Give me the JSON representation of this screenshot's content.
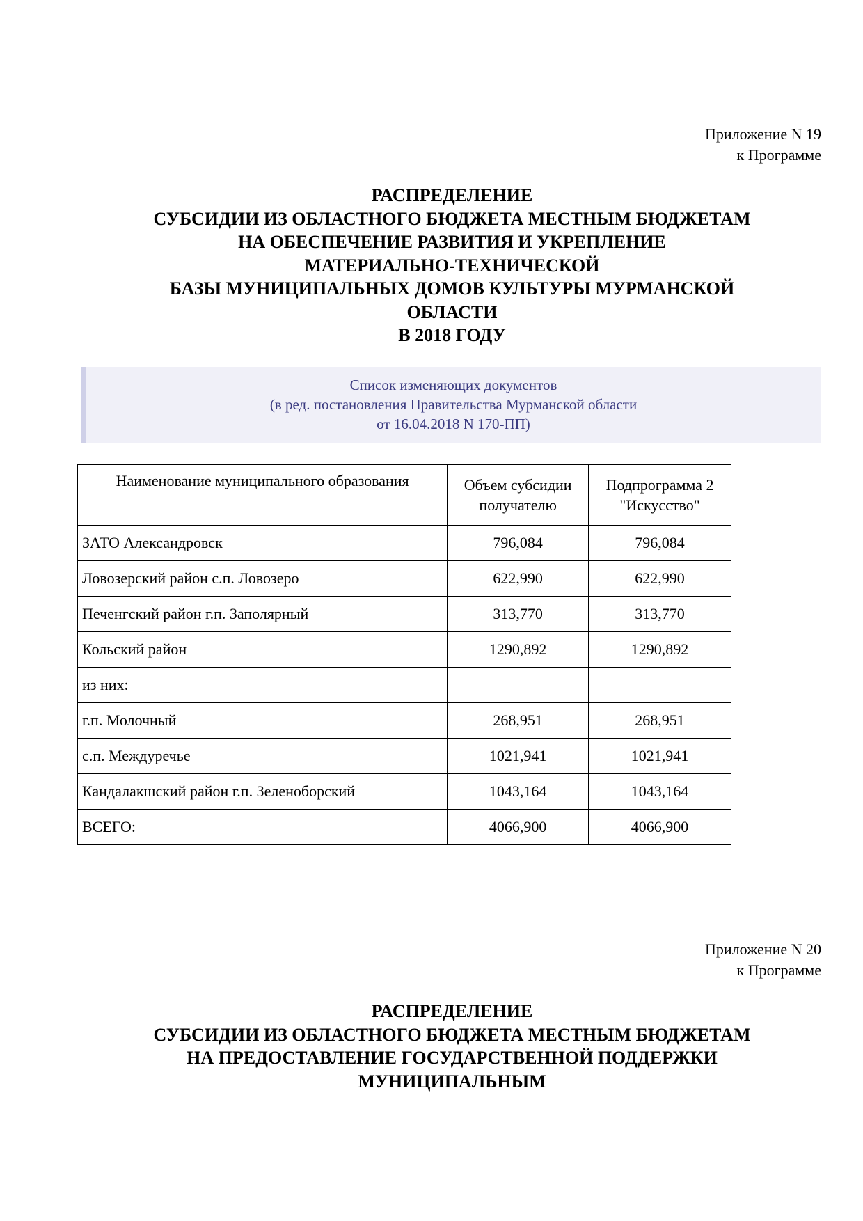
{
  "appendix19": {
    "line1": "Приложение N 19",
    "line2": "к Программе"
  },
  "title19": [
    "РАСПРЕДЕЛЕНИЕ",
    "СУБСИДИИ ИЗ ОБЛАСТНОГО БЮДЖЕТА МЕСТНЫМ БЮДЖЕТАМ",
    "НА ОБЕСПЕЧЕНИЕ РАЗВИТИЯ И УКРЕПЛЕНИЕ",
    "МАТЕРИАЛЬНО-ТЕХНИЧЕСКОЙ",
    "БАЗЫ МУНИЦИПАЛЬНЫХ ДОМОВ КУЛЬТУРЫ МУРМАНСКОЙ",
    "ОБЛАСТИ",
    "В 2018 ГОДУ"
  ],
  "changes": [
    "Список изменяющих документов",
    "(в ред. постановления Правительства Мурманской области",
    "от 16.04.2018 N 170-ПП)"
  ],
  "table": {
    "headers": [
      "Наименование муниципального образования",
      "Объем субсидии получателю",
      "Подпрограмма 2 \"Искусство\""
    ],
    "rows": [
      [
        "ЗАТО Александровск",
        "796,084",
        "796,084"
      ],
      [
        "Ловозерский район с.п. Ловозеро",
        "622,990",
        "622,990"
      ],
      [
        "Печенгский район г.п. Заполярный",
        "313,770",
        "313,770"
      ],
      [
        "Кольский район",
        "1290,892",
        "1290,892"
      ],
      [
        "из них:",
        "",
        ""
      ],
      [
        "г.п. Молочный",
        "268,951",
        "268,951"
      ],
      [
        "с.п. Междуречье",
        "1021,941",
        "1021,941"
      ],
      [
        "Кандалакшский район г.п. Зеленоборский",
        "1043,164",
        "1043,164"
      ],
      [
        "ВСЕГО:",
        "4066,900",
        "4066,900"
      ]
    ]
  },
  "appendix20": {
    "line1": "Приложение N 20",
    "line2": "к Программе"
  },
  "title20": [
    "РАСПРЕДЕЛЕНИЕ",
    "СУБСИДИИ ИЗ ОБЛАСТНОГО БЮДЖЕТА МЕСТНЫМ БЮДЖЕТАМ",
    "НА ПРЕДОСТАВЛЕНИЕ ГОСУДАРСТВЕННОЙ ПОДДЕРЖКИ",
    "МУНИЦИПАЛЬНЫМ"
  ]
}
